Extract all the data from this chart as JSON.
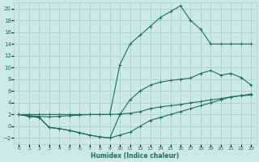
{
  "bg_color": "#cce8e8",
  "grid_color": "#aacfcf",
  "line_color": "#1a6e60",
  "xlabel": "Humidex (Indice chaleur)",
  "xlim": [
    -0.5,
    23.5
  ],
  "ylim": [
    -3,
    21
  ],
  "yticks": [
    -2,
    0,
    2,
    4,
    6,
    8,
    10,
    12,
    14,
    16,
    18,
    20
  ],
  "xticks": [
    0,
    1,
    2,
    3,
    4,
    5,
    6,
    7,
    8,
    9,
    10,
    11,
    12,
    13,
    14,
    15,
    16,
    17,
    18,
    19,
    20,
    21,
    22,
    23
  ],
  "curves": [
    {
      "x": [
        0,
        1,
        2,
        3,
        4,
        5,
        6,
        7,
        8,
        9,
        10,
        11,
        12,
        13,
        14,
        15,
        16,
        17,
        18,
        19,
        20,
        21,
        22,
        23
      ],
      "y": [
        2.0,
        1.7,
        1.5,
        -0.2,
        -0.4,
        -0.7,
        -1.1,
        -1.5,
        -1.8,
        -2.0,
        -1.5,
        -1.0,
        0.0,
        1.0,
        1.5,
        2.0,
        2.5,
        3.0,
        3.5,
        4.0,
        4.5,
        5.0,
        5.2,
        5.3
      ]
    },
    {
      "x": [
        0,
        1,
        2,
        3,
        4,
        5,
        6,
        7,
        8,
        9,
        10,
        11,
        12,
        13,
        14,
        15,
        16,
        17,
        18,
        19,
        20,
        21,
        22,
        23
      ],
      "y": [
        2.0,
        1.7,
        1.5,
        -0.2,
        -0.4,
        -0.7,
        -1.1,
        -1.5,
        -1.8,
        -2.0,
        2.0,
        4.5,
        6.0,
        7.0,
        7.5,
        7.8,
        8.0,
        8.2,
        9.0,
        9.5,
        8.7,
        9.0,
        8.3,
        7.0
      ]
    },
    {
      "x": [
        0,
        1,
        2,
        3,
        4,
        5,
        6,
        7,
        8,
        9,
        10,
        11,
        12,
        13,
        14,
        15,
        16,
        17,
        18,
        19,
        20,
        21,
        22,
        23
      ],
      "y": [
        2.0,
        2.0,
        2.0,
        2.0,
        2.0,
        2.0,
        2.0,
        2.0,
        2.0,
        2.0,
        10.5,
        14.0,
        15.5,
        17.0,
        18.5,
        19.5,
        20.5,
        18.0,
        16.5,
        14.0,
        14.0,
        14.0,
        14.0,
        14.0
      ]
    },
    {
      "x": [
        0,
        1,
        2,
        3,
        4,
        5,
        6,
        7,
        8,
        9,
        10,
        11,
        12,
        13,
        14,
        15,
        16,
        17,
        18,
        19,
        20,
        21,
        22,
        23
      ],
      "y": [
        2.0,
        1.8,
        1.7,
        1.6,
        1.7,
        1.8,
        1.9,
        2.0,
        2.0,
        2.0,
        2.1,
        2.2,
        2.5,
        3.0,
        3.3,
        3.5,
        3.7,
        4.0,
        4.2,
        4.5,
        4.7,
        5.0,
        5.2,
        5.5
      ]
    }
  ]
}
